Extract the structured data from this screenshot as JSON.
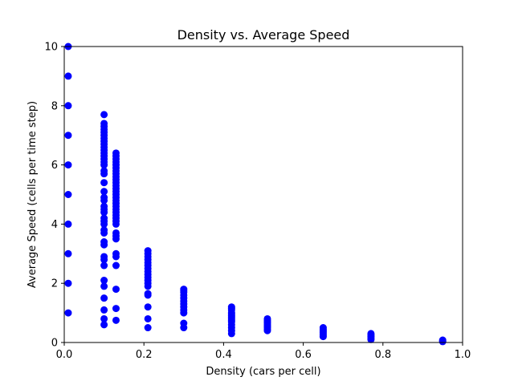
{
  "chart_data": {
    "type": "scatter",
    "title": "Density vs. Average Speed",
    "xlabel": "Density (cars per cell)",
    "ylabel": "Average Speed (cells per time step)",
    "xlim": [
      0.0,
      1.0
    ],
    "ylim": [
      0,
      10
    ],
    "x_ticks": [
      "0.0",
      "0.2",
      "0.4",
      "0.6",
      "0.8",
      "1.0"
    ],
    "y_ticks": [
      "0",
      "2",
      "4",
      "6",
      "8",
      "10"
    ],
    "grid": false,
    "legend": "none",
    "marker_color": "#0000ff",
    "series": [
      {
        "points": [
          [
            0.01,
            10.0
          ],
          [
            0.01,
            9.0
          ],
          [
            0.01,
            8.0
          ],
          [
            0.01,
            7.0
          ],
          [
            0.01,
            6.0
          ],
          [
            0.01,
            5.0
          ],
          [
            0.01,
            4.0
          ],
          [
            0.01,
            3.0
          ],
          [
            0.01,
            2.0
          ],
          [
            0.01,
            1.0
          ],
          [
            0.1,
            7.7
          ],
          [
            0.1,
            7.4
          ],
          [
            0.1,
            7.3
          ],
          [
            0.1,
            7.2
          ],
          [
            0.1,
            7.1
          ],
          [
            0.1,
            7.0
          ],
          [
            0.1,
            6.9
          ],
          [
            0.1,
            6.8
          ],
          [
            0.1,
            6.7
          ],
          [
            0.1,
            6.6
          ],
          [
            0.1,
            6.5
          ],
          [
            0.1,
            6.4
          ],
          [
            0.1,
            6.3
          ],
          [
            0.1,
            6.2
          ],
          [
            0.1,
            6.1
          ],
          [
            0.1,
            6.0
          ],
          [
            0.1,
            5.8
          ],
          [
            0.1,
            5.7
          ],
          [
            0.1,
            5.4
          ],
          [
            0.1,
            5.1
          ],
          [
            0.1,
            4.9
          ],
          [
            0.1,
            4.8
          ],
          [
            0.1,
            4.6
          ],
          [
            0.1,
            4.5
          ],
          [
            0.1,
            4.4
          ],
          [
            0.1,
            4.2
          ],
          [
            0.1,
            4.1
          ],
          [
            0.1,
            4.0
          ],
          [
            0.1,
            3.8
          ],
          [
            0.1,
            3.7
          ],
          [
            0.1,
            3.4
          ],
          [
            0.1,
            3.3
          ],
          [
            0.1,
            2.9
          ],
          [
            0.1,
            2.8
          ],
          [
            0.1,
            2.6
          ],
          [
            0.1,
            2.1
          ],
          [
            0.1,
            1.9
          ],
          [
            0.1,
            1.5
          ],
          [
            0.1,
            1.1
          ],
          [
            0.1,
            0.8
          ],
          [
            0.1,
            0.6
          ],
          [
            0.13,
            6.4
          ],
          [
            0.13,
            6.3
          ],
          [
            0.13,
            6.2
          ],
          [
            0.13,
            6.1
          ],
          [
            0.13,
            6.0
          ],
          [
            0.13,
            5.9
          ],
          [
            0.13,
            5.8
          ],
          [
            0.13,
            5.7
          ],
          [
            0.13,
            5.6
          ],
          [
            0.13,
            5.5
          ],
          [
            0.13,
            5.4
          ],
          [
            0.13,
            5.3
          ],
          [
            0.13,
            5.2
          ],
          [
            0.13,
            5.1
          ],
          [
            0.13,
            5.0
          ],
          [
            0.13,
            4.9
          ],
          [
            0.13,
            4.8
          ],
          [
            0.13,
            4.7
          ],
          [
            0.13,
            4.6
          ],
          [
            0.13,
            4.5
          ],
          [
            0.13,
            4.4
          ],
          [
            0.13,
            4.3
          ],
          [
            0.13,
            4.2
          ],
          [
            0.13,
            4.1
          ],
          [
            0.13,
            4.0
          ],
          [
            0.13,
            3.7
          ],
          [
            0.13,
            3.6
          ],
          [
            0.13,
            3.5
          ],
          [
            0.13,
            3.0
          ],
          [
            0.13,
            2.9
          ],
          [
            0.13,
            2.6
          ],
          [
            0.13,
            1.8
          ],
          [
            0.13,
            1.15
          ],
          [
            0.13,
            0.75
          ],
          [
            0.21,
            3.1
          ],
          [
            0.21,
            3.0
          ],
          [
            0.21,
            2.9
          ],
          [
            0.21,
            2.8
          ],
          [
            0.21,
            2.7
          ],
          [
            0.21,
            2.6
          ],
          [
            0.21,
            2.5
          ],
          [
            0.21,
            2.4
          ],
          [
            0.21,
            2.3
          ],
          [
            0.21,
            2.2
          ],
          [
            0.21,
            2.1
          ],
          [
            0.21,
            2.0
          ],
          [
            0.21,
            1.9
          ],
          [
            0.21,
            1.65
          ],
          [
            0.21,
            1.6
          ],
          [
            0.21,
            1.2
          ],
          [
            0.21,
            0.8
          ],
          [
            0.21,
            0.5
          ],
          [
            0.3,
            1.8
          ],
          [
            0.3,
            1.75
          ],
          [
            0.3,
            1.7
          ],
          [
            0.3,
            1.6
          ],
          [
            0.3,
            1.5
          ],
          [
            0.3,
            1.4
          ],
          [
            0.3,
            1.3
          ],
          [
            0.3,
            1.2
          ],
          [
            0.3,
            1.1
          ],
          [
            0.3,
            1.0
          ],
          [
            0.3,
            0.65
          ],
          [
            0.3,
            0.5
          ],
          [
            0.42,
            1.2
          ],
          [
            0.42,
            1.15
          ],
          [
            0.42,
            1.1
          ],
          [
            0.42,
            1.0
          ],
          [
            0.42,
            0.95
          ],
          [
            0.42,
            0.9
          ],
          [
            0.42,
            0.85
          ],
          [
            0.42,
            0.8
          ],
          [
            0.42,
            0.75
          ],
          [
            0.42,
            0.7
          ],
          [
            0.42,
            0.6
          ],
          [
            0.42,
            0.5
          ],
          [
            0.42,
            0.4
          ],
          [
            0.42,
            0.3
          ],
          [
            0.51,
            0.8
          ],
          [
            0.51,
            0.75
          ],
          [
            0.51,
            0.7
          ],
          [
            0.51,
            0.65
          ],
          [
            0.51,
            0.6
          ],
          [
            0.51,
            0.55
          ],
          [
            0.51,
            0.5
          ],
          [
            0.51,
            0.45
          ],
          [
            0.51,
            0.4
          ],
          [
            0.65,
            0.5
          ],
          [
            0.65,
            0.45
          ],
          [
            0.65,
            0.4
          ],
          [
            0.65,
            0.35
          ],
          [
            0.65,
            0.3
          ],
          [
            0.65,
            0.25
          ],
          [
            0.65,
            0.2
          ],
          [
            0.77,
            0.3
          ],
          [
            0.77,
            0.25
          ],
          [
            0.77,
            0.2
          ],
          [
            0.77,
            0.15
          ],
          [
            0.77,
            0.1
          ],
          [
            0.95,
            0.08
          ],
          [
            0.95,
            0.05
          ],
          [
            0.95,
            0.03
          ]
        ]
      }
    ]
  }
}
